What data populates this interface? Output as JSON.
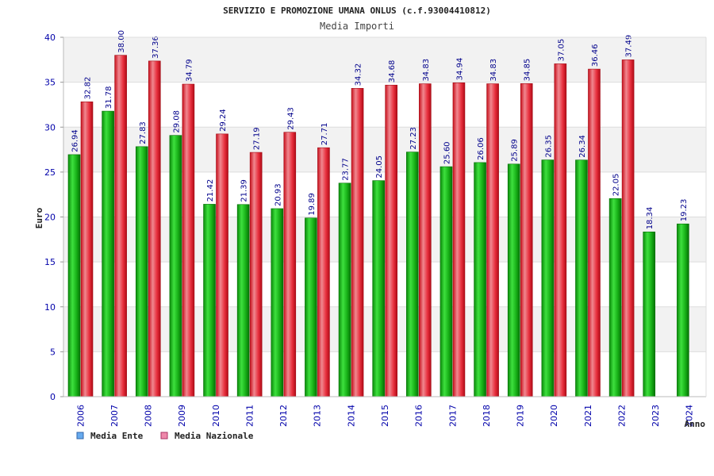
{
  "chart_data": {
    "type": "bar",
    "title": "SERVIZIO E PROMOZIONE UMANA ONLUS (c.f.93004410812)",
    "subtitle": "Media Importi",
    "xlabel": "Anno",
    "ylabel": "Euro",
    "ylim": [
      0,
      40
    ],
    "yticks": [
      "0",
      "5",
      "10",
      "15",
      "20",
      "25",
      "30",
      "35",
      "40"
    ],
    "categories": [
      "2006",
      "2007",
      "2008",
      "2009",
      "2010",
      "2011",
      "2012",
      "2013",
      "2014",
      "2015",
      "2016",
      "2017",
      "2018",
      "2019",
      "2020",
      "2021",
      "2022",
      "2023",
      "2024"
    ],
    "series": [
      {
        "name": "Media Ente",
        "color": "#22bb22",
        "values": [
          26.94,
          31.78,
          27.83,
          29.08,
          21.42,
          21.39,
          20.93,
          19.89,
          23.77,
          24.05,
          27.23,
          25.6,
          26.06,
          25.89,
          26.35,
          26.34,
          22.05,
          18.34,
          19.23
        ],
        "labels": [
          "26.94",
          "31.78",
          "27.83",
          "29.08",
          "21.42",
          "21.39",
          "20.93",
          "19.89",
          "23.77",
          "24.05",
          "27.23",
          "25.60",
          "26.06",
          "25.89",
          "26.35",
          "26.34",
          "22.05",
          "18.34",
          "19.23"
        ]
      },
      {
        "name": "Media Nazionale",
        "color": "#ee2233",
        "values": [
          32.82,
          38.0,
          37.36,
          34.79,
          29.24,
          27.19,
          29.43,
          27.71,
          34.32,
          34.68,
          34.83,
          34.94,
          34.83,
          34.85,
          37.05,
          36.46,
          37.49,
          null,
          null
        ],
        "labels": [
          "32.82",
          "38.00",
          "37.36",
          "34.79",
          "29.24",
          "27.19",
          "29.43",
          "27.71",
          "34.32",
          "34.68",
          "34.83",
          "34.94",
          "34.83",
          "34.85",
          "37.05",
          "36.46",
          "37.49",
          null,
          null
        ]
      }
    ],
    "legend": [
      {
        "label": "Media Ente",
        "color": "#66aaee"
      },
      {
        "label": "Media Nazionale",
        "color": "#ee88aa"
      }
    ],
    "grid": true,
    "legend_position": "bottom-left",
    "plot_background": [
      "#f2f2f2",
      "#ffffff"
    ]
  }
}
